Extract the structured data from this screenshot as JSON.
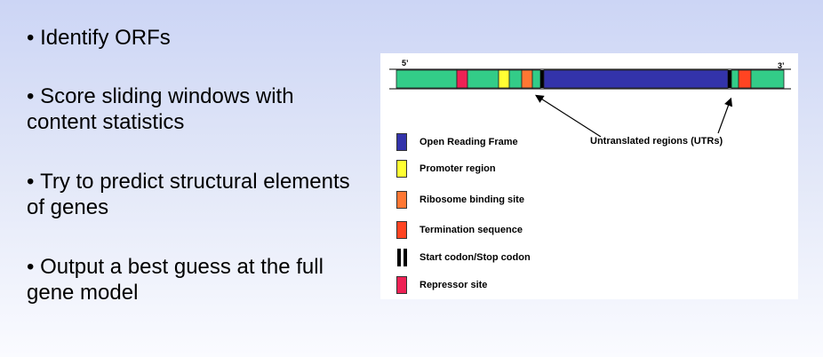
{
  "bullets": [
    "Identify ORFs",
    "Score sliding windows with content statistics",
    "Try to predict structural elements of genes",
    "Output a best guess at the full gene model"
  ],
  "diagram": {
    "five_prime": "5’",
    "three_prime": "3’",
    "utr_label": "Untranslated regions (UTRs)",
    "colors": {
      "utr": "#33cc88",
      "orf": "#3333aa",
      "promoter": "#ffff33",
      "ribosome": "#ff7733",
      "termination": "#ff4422",
      "codon": "#000000",
      "repressor": "#ee2255"
    },
    "legend": [
      {
        "label": "Open Reading Frame",
        "color": "#3333aa",
        "icon": "solid-swatch"
      },
      {
        "label": "Promoter region",
        "color": "#ffff33",
        "icon": "solid-swatch"
      },
      {
        "label": "Ribosome binding site",
        "color": "#ff7733",
        "icon": "solid-swatch"
      },
      {
        "label": "Termination sequence",
        "color": "#ff4422",
        "icon": "solid-swatch"
      },
      {
        "label": "Start codon/Stop codon",
        "color": "#000000",
        "icon": "double-bar"
      },
      {
        "label": "Repressor site",
        "color": "#ee2255",
        "icon": "solid-swatch"
      }
    ]
  }
}
